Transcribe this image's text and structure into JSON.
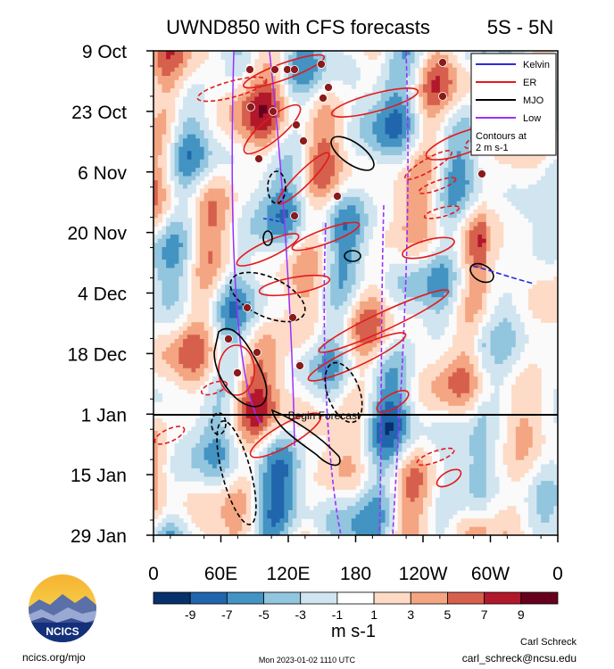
{
  "chart_data": {
    "type": "heatmap",
    "title": "UWND850 with CFS forecasts",
    "region": "5S - 5N",
    "ylabels": [
      "9 Oct",
      "23 Oct",
      "6 Nov",
      "20 Nov",
      "4 Dec",
      "18 Dec",
      "1 Jan",
      "15 Jan",
      "29 Jan"
    ],
    "xlabels": [
      "0",
      "60E",
      "120E",
      "180",
      "120W",
      "60W",
      "0"
    ],
    "xlim": [
      0,
      360
    ],
    "colorbar": {
      "ticks": [
        "-9",
        "-7",
        "-5",
        "-3",
        "-1",
        "1",
        "3",
        "5",
        "7",
        "9"
      ],
      "units": "m s-1",
      "colors": [
        "#08306b",
        "#2166ac",
        "#4393c3",
        "#92c5de",
        "#d1e5f0",
        "#ffffff",
        "#fddbc7",
        "#f4a582",
        "#d6604d",
        "#b2182b",
        "#67001f"
      ]
    },
    "legend": {
      "position": "top-right",
      "entries": [
        {
          "label": "Kelvin",
          "color": "#2b2bd9"
        },
        {
          "label": "ER",
          "color": "#e31a1c"
        },
        {
          "label": "MJO",
          "color": "#000000"
        },
        {
          "label": "Low",
          "color": "#9b30ff"
        }
      ],
      "note_line1": "Contours at",
      "note_line2": "2 m s-1"
    },
    "forecast_label": "Begin Forecast",
    "forecast_start": "1 Jan"
  },
  "footer": {
    "logo_text": "NCICS",
    "url": "ncics.org/mjo",
    "timestamp": "Mon 2023-01-02 1110 UTC",
    "author": "Carl Schreck",
    "email": "carl_schreck@ncsu.edu"
  }
}
